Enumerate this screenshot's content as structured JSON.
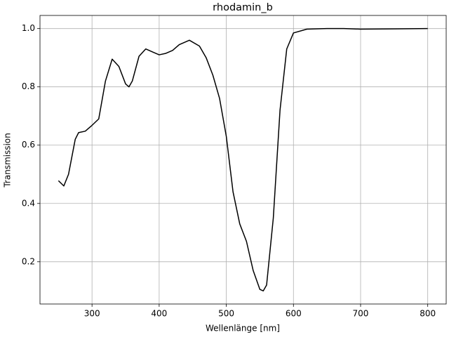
{
  "chart_data": {
    "type": "line",
    "title": "rhodamin_b",
    "x_label": "Wellenlänge [nm]",
    "y_label": "Transmission",
    "x": [
      250,
      258,
      265,
      275,
      280,
      290,
      300,
      310,
      320,
      330,
      340,
      350,
      355,
      360,
      370,
      380,
      390,
      400,
      410,
      420,
      430,
      445,
      460,
      470,
      480,
      490,
      500,
      510,
      520,
      530,
      540,
      550,
      555,
      560,
      570,
      580,
      590,
      600,
      620,
      650,
      675,
      700,
      750,
      800
    ],
    "series": [
      {
        "name": "rhodamin_b",
        "color": "#000000",
        "values": [
          0.478,
          0.46,
          0.5,
          0.62,
          0.643,
          0.648,
          0.668,
          0.69,
          0.82,
          0.895,
          0.87,
          0.81,
          0.8,
          0.82,
          0.905,
          0.93,
          0.92,
          0.91,
          0.915,
          0.925,
          0.945,
          0.96,
          0.94,
          0.9,
          0.84,
          0.76,
          0.63,
          0.44,
          0.33,
          0.27,
          0.17,
          0.105,
          0.1,
          0.12,
          0.35,
          0.72,
          0.93,
          0.985,
          0.998,
          1.0,
          1.0,
          0.998,
          0.999,
          1.0
        ]
      }
    ],
    "xlim": [
      222.5,
      827.5
    ],
    "ylim": [
      0.055,
      1.045
    ],
    "xticks": [
      300,
      400,
      500,
      600,
      700,
      800
    ],
    "yticks": [
      0.2,
      0.4,
      0.6,
      0.8,
      {
        "value": 1,
        "label": "1.0"
      }
    ],
    "grid": true
  }
}
